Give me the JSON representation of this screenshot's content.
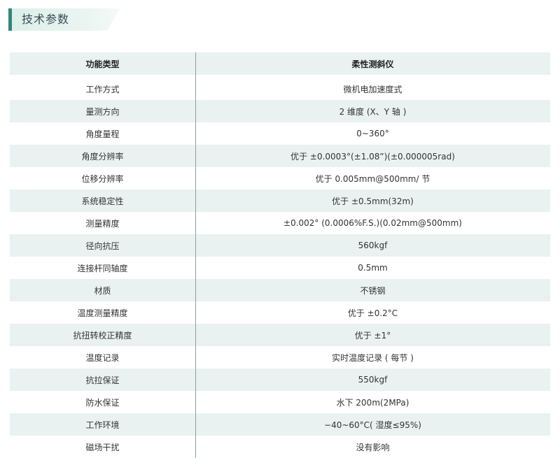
{
  "header": {
    "title": "技术参数"
  },
  "table": {
    "columns": [
      "功能类型",
      "柔性测斜仪"
    ],
    "rows": [
      [
        "工作方式",
        "微机电加速度式"
      ],
      [
        "量测方向",
        "2 维度 (X、Y 轴 )"
      ],
      [
        "角度量程",
        "0~360°"
      ],
      [
        "角度分辨率",
        "优于 ±0.0003°(±1.08”)(±0.000005rad)"
      ],
      [
        "位移分辨率",
        "优于 0.005mm@500mm/ 节"
      ],
      [
        "系统稳定性",
        "优于 ±0.5mm(32m)"
      ],
      [
        "测量精度",
        "±0.002° (0.0006%F.S.)(0.02mm@500mm)"
      ],
      [
        "径向抗压",
        "560kgf"
      ],
      [
        "连接杆同轴度",
        "0.5mm"
      ],
      [
        "材质",
        "不锈钢"
      ],
      [
        "温度测量精度",
        "优于 ±0.2°C"
      ],
      [
        "抗扭转校正精度",
        "优于 ±1°"
      ],
      [
        "温度记录",
        "实时温度记录 ( 每节 )"
      ],
      [
        "抗拉保证",
        "550kgf"
      ],
      [
        "防水保证",
        "水下 200m(2MPa)"
      ],
      [
        "工作环境",
        "−40~60°C( 湿度≤95%)"
      ],
      [
        "磁场干扰",
        "没有影响"
      ]
    ]
  }
}
